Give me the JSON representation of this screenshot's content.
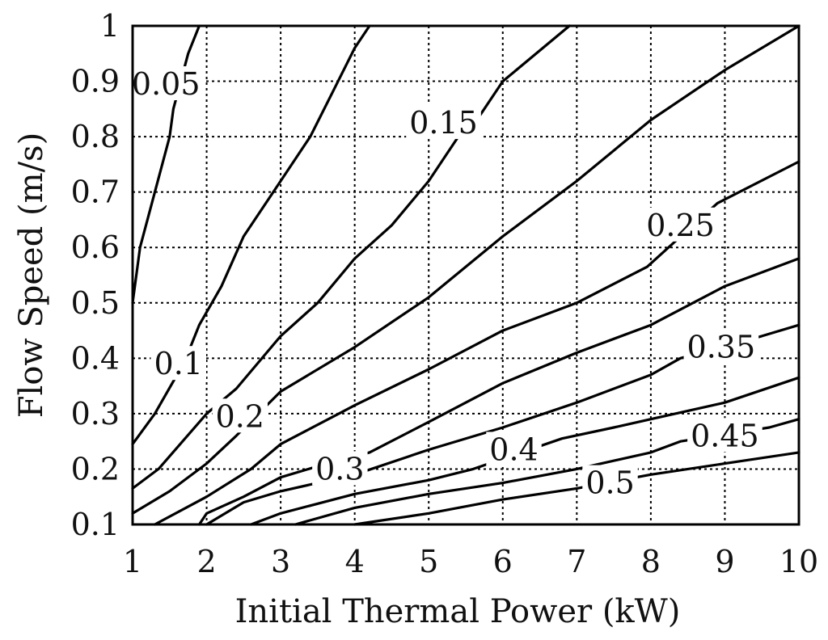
{
  "chart_data": {
    "type": "contour",
    "xlabel": "Initial Thermal Power (kW)",
    "ylabel": "Flow Speed (m/s)",
    "xlim": [
      1,
      10
    ],
    "ylim": [
      0.1,
      1
    ],
    "x_ticks": [
      "1",
      "2",
      "3",
      "4",
      "5",
      "6",
      "7",
      "8",
      "9",
      "10"
    ],
    "y_ticks": [
      "0.1",
      "0.2",
      "0.3",
      "0.4",
      "0.5",
      "0.6",
      "0.7",
      "0.8",
      "0.9",
      "1"
    ],
    "x_tick_values": [
      1,
      2,
      3,
      4,
      5,
      6,
      7,
      8,
      9,
      10
    ],
    "y_tick_values": [
      0.1,
      0.2,
      0.3,
      0.4,
      0.5,
      0.6,
      0.7,
      0.8,
      0.9,
      1.0
    ],
    "grid": true,
    "contours": [
      {
        "level": 0.05,
        "label": "0.05",
        "label_at": [
          1.45,
          0.895
        ],
        "points": [
          [
            1.0,
            0.5
          ],
          [
            1.1,
            0.6
          ],
          [
            1.3,
            0.7
          ],
          [
            1.5,
            0.8
          ],
          [
            1.55,
            0.85
          ],
          [
            1.75,
            0.95
          ],
          [
            1.9,
            1.0
          ]
        ]
      },
      {
        "level": 0.1,
        "label": "0.1",
        "label_at": [
          1.62,
          0.39
        ],
        "points": [
          [
            1.0,
            0.245
          ],
          [
            1.3,
            0.3
          ],
          [
            1.6,
            0.37
          ],
          [
            1.75,
            0.41
          ],
          [
            1.9,
            0.46
          ],
          [
            2.2,
            0.53
          ],
          [
            2.5,
            0.62
          ],
          [
            3.0,
            0.72
          ],
          [
            3.4,
            0.8
          ],
          [
            3.7,
            0.88
          ],
          [
            4.0,
            0.96
          ],
          [
            4.2,
            1.0
          ]
        ]
      },
      {
        "level": 0.15,
        "label": "0.15",
        "label_at": [
          5.2,
          0.825
        ],
        "points": [
          [
            1.0,
            0.165
          ],
          [
            1.35,
            0.2
          ],
          [
            2.0,
            0.3
          ],
          [
            2.4,
            0.345
          ],
          [
            3.0,
            0.44
          ],
          [
            3.5,
            0.5
          ],
          [
            4.0,
            0.58
          ],
          [
            4.5,
            0.64
          ],
          [
            5.0,
            0.72
          ],
          [
            5.4,
            0.8
          ],
          [
            5.7,
            0.84
          ],
          [
            6.0,
            0.9
          ],
          [
            6.9,
            1.0
          ]
        ]
      },
      {
        "level": 0.2,
        "label": "0.2",
        "label_at": [
          2.45,
          0.295
        ],
        "points": [
          [
            1.0,
            0.12
          ],
          [
            1.5,
            0.16
          ],
          [
            2.0,
            0.21
          ],
          [
            2.4,
            0.26
          ],
          [
            2.7,
            0.3
          ],
          [
            3.0,
            0.34
          ],
          [
            4.0,
            0.42
          ],
          [
            5.0,
            0.51
          ],
          [
            6.0,
            0.62
          ],
          [
            7.0,
            0.72
          ],
          [
            8.0,
            0.83
          ],
          [
            9.0,
            0.92
          ],
          [
            10.0,
            1.0
          ]
        ]
      },
      {
        "level": 0.25,
        "label": "0.25",
        "label_at": [
          8.4,
          0.64
        ],
        "points": [
          [
            1.3,
            0.1
          ],
          [
            2.0,
            0.15
          ],
          [
            2.6,
            0.2
          ],
          [
            3.0,
            0.245
          ],
          [
            4.0,
            0.315
          ],
          [
            5.0,
            0.38
          ],
          [
            6.0,
            0.45
          ],
          [
            7.0,
            0.5
          ],
          [
            7.95,
            0.565
          ],
          [
            8.9,
            0.68
          ],
          [
            10.0,
            0.755
          ]
        ]
      },
      {
        "level": 0.3,
        "label": "0.3",
        "label_at": [
          3.8,
          0.2
        ],
        "points": [
          [
            1.9,
            0.1
          ],
          [
            2.0,
            0.12
          ],
          [
            2.5,
            0.15
          ],
          [
            3.0,
            0.185
          ],
          [
            3.5,
            0.205
          ],
          [
            4.2,
            0.23
          ],
          [
            5.0,
            0.285
          ],
          [
            6.0,
            0.355
          ],
          [
            7.0,
            0.41
          ],
          [
            8.0,
            0.46
          ],
          [
            9.0,
            0.53
          ],
          [
            10.0,
            0.58
          ]
        ]
      },
      {
        "level": 0.35,
        "label": "0.35",
        "label_at": [
          8.95,
          0.42
        ],
        "points": [
          [
            2.0,
            0.1
          ],
          [
            2.5,
            0.14
          ],
          [
            3.0,
            0.16
          ],
          [
            4.0,
            0.19
          ],
          [
            5.0,
            0.235
          ],
          [
            6.0,
            0.275
          ],
          [
            7.0,
            0.32
          ],
          [
            8.0,
            0.37
          ],
          [
            8.4,
            0.4
          ],
          [
            9.5,
            0.44
          ],
          [
            10.0,
            0.46
          ]
        ]
      },
      {
        "level": 0.4,
        "label": "0.4",
        "label_at": [
          6.15,
          0.235
        ],
        "points": [
          [
            2.6,
            0.1
          ],
          [
            3.0,
            0.12
          ],
          [
            4.0,
            0.155
          ],
          [
            5.0,
            0.18
          ],
          [
            5.6,
            0.2
          ],
          [
            6.8,
            0.255
          ],
          [
            7.5,
            0.275
          ],
          [
            8.0,
            0.29
          ],
          [
            9.0,
            0.32
          ],
          [
            10.0,
            0.365
          ]
        ]
      },
      {
        "level": 0.45,
        "label": "0.45",
        "label_at": [
          9.0,
          0.26
        ],
        "points": [
          [
            3.2,
            0.1
          ],
          [
            4.0,
            0.13
          ],
          [
            5.0,
            0.155
          ],
          [
            6.0,
            0.175
          ],
          [
            7.0,
            0.2
          ],
          [
            8.0,
            0.23
          ],
          [
            8.4,
            0.25
          ],
          [
            9.6,
            0.275
          ],
          [
            10.0,
            0.29
          ]
        ]
      },
      {
        "level": 0.5,
        "label": "0.5",
        "label_at": [
          7.45,
          0.175
        ],
        "points": [
          [
            4.0,
            0.1
          ],
          [
            5.0,
            0.12
          ],
          [
            6.0,
            0.145
          ],
          [
            7.0,
            0.165
          ],
          [
            8.0,
            0.19
          ],
          [
            9.0,
            0.21
          ],
          [
            10.0,
            0.23
          ]
        ]
      }
    ]
  }
}
